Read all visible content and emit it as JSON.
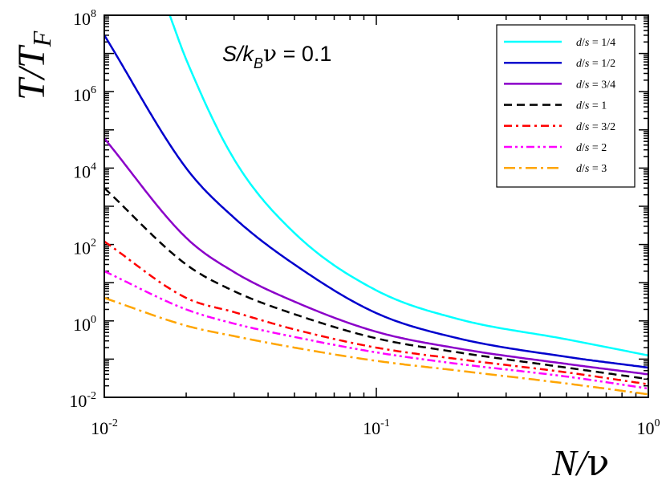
{
  "chart_data": {
    "type": "line",
    "xscale": "log",
    "yscale": "log",
    "xlim": [
      0.01,
      1
    ],
    "ylim": [
      0.01,
      100000000
    ],
    "xlabel": {
      "main": "N/",
      "nu": "ν"
    },
    "ylabel": {
      "main": "T/T",
      "sub": "F"
    },
    "annotation": {
      "s": "S/k",
      "b": "B",
      "nu": "ν",
      "rest": " = 0.1"
    },
    "x_ticks": [
      {
        "base": "10",
        "exp": "-2",
        "value": 0.01
      },
      {
        "base": "10",
        "exp": "-1",
        "value": 0.1
      },
      {
        "base": "10",
        "exp": "0",
        "value": 1
      }
    ],
    "y_ticks": [
      {
        "base": "10",
        "exp": "-2",
        "value": 0.01
      },
      {
        "base": "10",
        "exp": "0",
        "value": 1
      },
      {
        "base": "10",
        "exp": "2",
        "value": 100
      },
      {
        "base": "10",
        "exp": "4",
        "value": 10000
      },
      {
        "base": "10",
        "exp": "6",
        "value": 1000000
      },
      {
        "base": "10",
        "exp": "8",
        "value": 100000000
      }
    ],
    "legend_position": "top-right",
    "series": [
      {
        "name": "d/s = 1/4",
        "label": {
          "d": "d",
          "slash": "/",
          "s": "s",
          "rest": " = 1/4"
        },
        "color": "#00ffff",
        "dash": "solid",
        "x": [
          0.0174,
          0.02,
          0.03,
          0.05,
          0.1,
          0.2,
          0.5,
          1.0
        ],
        "y": [
          100000000,
          7000000,
          17000,
          200,
          6.3,
          1.12,
          0.33,
          0.125
        ]
      },
      {
        "name": "d/s = 1/2",
        "label": {
          "d": "d",
          "slash": "/",
          "s": "s",
          "rest": " = 1/2"
        },
        "color": "#0000cd",
        "dash": "solid",
        "x": [
          0.01,
          0.02,
          0.03,
          0.05,
          0.1,
          0.2,
          0.5,
          1.0
        ],
        "y": [
          30000000,
          10000,
          500,
          30,
          1.6,
          0.35,
          0.115,
          0.06
        ]
      },
      {
        "name": "d/s = 3/4",
        "label": {
          "d": "d",
          "slash": "/",
          "s": "s",
          "rest": " = 3/4"
        },
        "color": "#8b00c9",
        "dash": "solid",
        "x": [
          0.01,
          0.02,
          0.03,
          0.05,
          0.1,
          0.2,
          0.5,
          1.0
        ],
        "y": [
          60000,
          150,
          19,
          3.2,
          0.52,
          0.19,
          0.075,
          0.04
        ]
      },
      {
        "name": "d/s = 1",
        "label": {
          "d": "d",
          "slash": "/",
          "s": "s",
          "rest": " = 1"
        },
        "color": "#000000",
        "dash": "dashed",
        "x": [
          0.01,
          0.02,
          0.03,
          0.05,
          0.1,
          0.2,
          0.5,
          1.0
        ],
        "y": [
          3000,
          30,
          6,
          1.5,
          0.35,
          0.15,
          0.06,
          0.03
        ]
      },
      {
        "name": "d/s = 3/2",
        "label": {
          "d": "d",
          "slash": "/",
          "s": "s",
          "rest": " = 3/2"
        },
        "color": "#ff0000",
        "dash": "dashdot",
        "x": [
          0.01,
          0.02,
          0.03,
          0.05,
          0.1,
          0.2,
          0.5,
          1.0
        ],
        "y": [
          120,
          4,
          1.7,
          0.6,
          0.2,
          0.1,
          0.045,
          0.022
        ]
      },
      {
        "name": "d/s = 2",
        "label": {
          "d": "d",
          "slash": "/",
          "s": "s",
          "rest": " = 2"
        },
        "color": "#ff00ff",
        "dash": "dashdotdot",
        "x": [
          0.01,
          0.02,
          0.03,
          0.05,
          0.1,
          0.2,
          0.5,
          1.0
        ],
        "y": [
          20,
          2,
          0.85,
          0.38,
          0.15,
          0.075,
          0.035,
          0.017
        ]
      },
      {
        "name": "d/s = 3",
        "label": {
          "d": "d",
          "slash": "/",
          "s": "s",
          "rest": " = 3"
        },
        "color": "#ffa500",
        "dash": "longdashdot",
        "x": [
          0.01,
          0.02,
          0.03,
          0.05,
          0.1,
          0.2,
          0.5,
          1.0
        ],
        "y": [
          4,
          0.75,
          0.4,
          0.2,
          0.09,
          0.05,
          0.023,
          0.012
        ]
      }
    ]
  }
}
